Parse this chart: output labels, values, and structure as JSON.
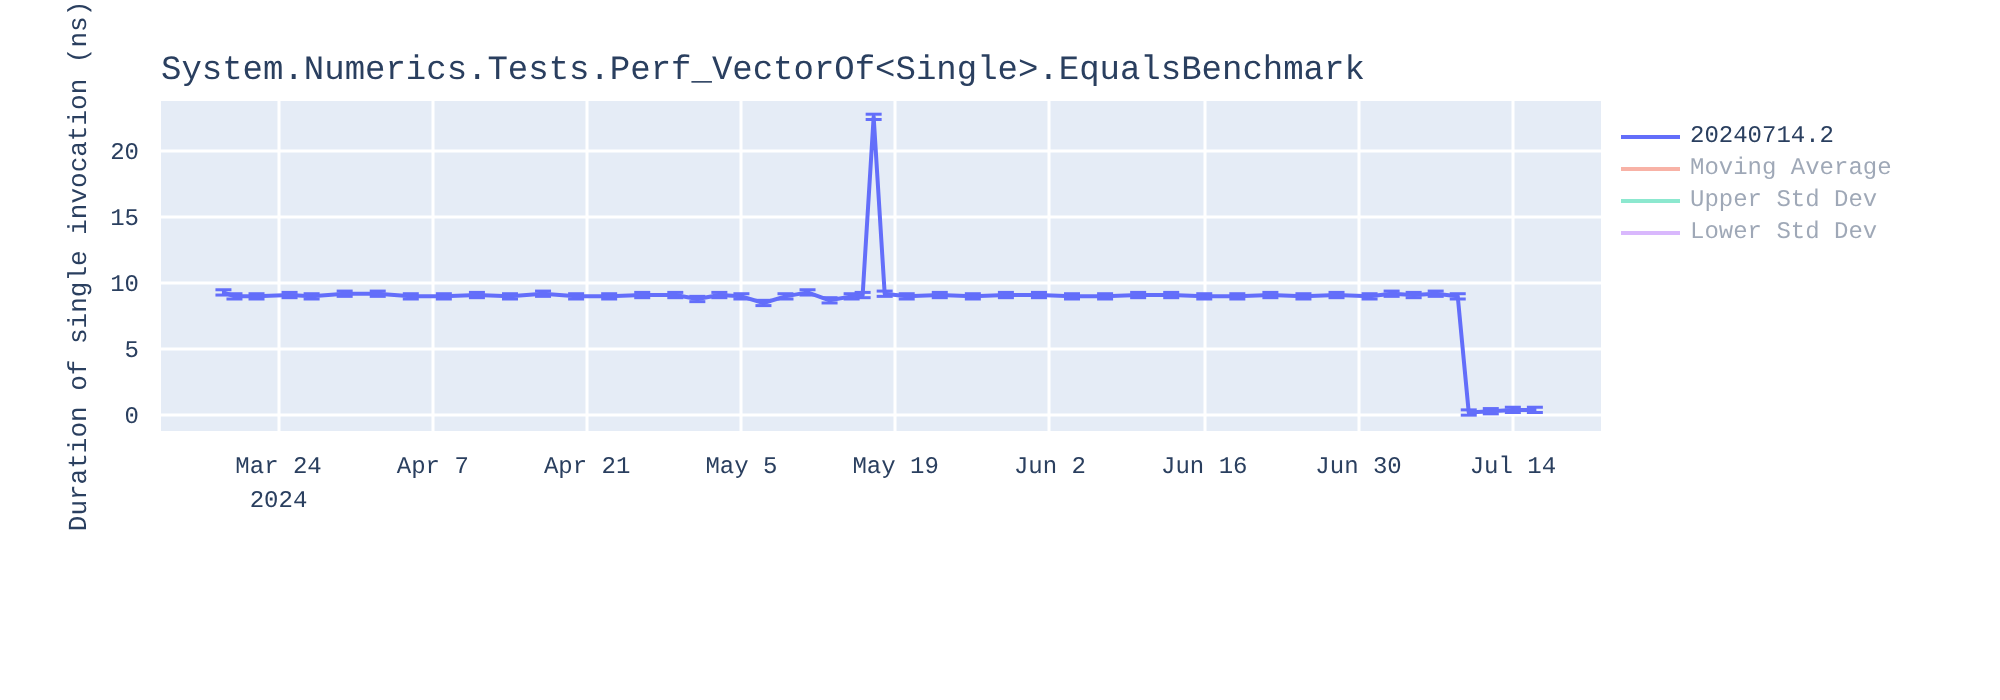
{
  "chart_data": {
    "type": "line",
    "title": "System.Numerics.Tests.Perf_VectorOf<Single>.EqualsBenchmark",
    "ylabel": "Duration of single invocation (ns)",
    "x": [
      "2024-03-19",
      "2024-03-20",
      "2024-03-22",
      "2024-03-25",
      "2024-03-27",
      "2024-03-30",
      "2024-04-02",
      "2024-04-05",
      "2024-04-08",
      "2024-04-11",
      "2024-04-14",
      "2024-04-17",
      "2024-04-20",
      "2024-04-23",
      "2024-04-26",
      "2024-04-29",
      "2024-05-01",
      "2024-05-03",
      "2024-05-05",
      "2024-05-07",
      "2024-05-09",
      "2024-05-11",
      "2024-05-13",
      "2024-05-15",
      "2024-05-16",
      "2024-05-17",
      "2024-05-18",
      "2024-05-20",
      "2024-05-23",
      "2024-05-26",
      "2024-05-29",
      "2024-06-01",
      "2024-06-04",
      "2024-06-07",
      "2024-06-10",
      "2024-06-13",
      "2024-06-16",
      "2024-06-19",
      "2024-06-22",
      "2024-06-25",
      "2024-06-28",
      "2024-07-01",
      "2024-07-03",
      "2024-07-05",
      "2024-07-07",
      "2024-07-09",
      "2024-07-10",
      "2024-07-12",
      "2024-07-14",
      "2024-07-16"
    ],
    "series": [
      {
        "name": "20240714.2",
        "color": "#636efa",
        "values": [
          9.3,
          9.0,
          9.0,
          9.1,
          9.0,
          9.2,
          9.2,
          9.0,
          9.0,
          9.1,
          9.0,
          9.2,
          9.0,
          9.0,
          9.1,
          9.1,
          8.8,
          9.1,
          9.0,
          8.5,
          9.0,
          9.3,
          8.7,
          9.0,
          9.1,
          22.6,
          9.2,
          9.0,
          9.1,
          9.0,
          9.1,
          9.1,
          9.0,
          9.0,
          9.1,
          9.1,
          9.0,
          9.0,
          9.1,
          9.0,
          9.1,
          9.0,
          9.2,
          9.1,
          9.2,
          9.0,
          0.2,
          0.3,
          0.4,
          0.4
        ],
        "errors": [
          0.2,
          0.2,
          0.2,
          0.2,
          0.2,
          0.2,
          0.2,
          0.2,
          0.2,
          0.2,
          0.2,
          0.2,
          0.2,
          0.2,
          0.2,
          0.2,
          0.2,
          0.2,
          0.2,
          0.2,
          0.2,
          0.2,
          0.2,
          0.2,
          0.2,
          0.2,
          0.2,
          0.2,
          0.2,
          0.2,
          0.2,
          0.2,
          0.2,
          0.2,
          0.2,
          0.2,
          0.2,
          0.2,
          0.2,
          0.2,
          0.2,
          0.2,
          0.2,
          0.2,
          0.2,
          0.2,
          0.2,
          0.2,
          0.2,
          0.2
        ]
      },
      {
        "name": "Moving Average",
        "color": "#ef553b",
        "values": [
          null,
          null,
          null,
          null,
          null,
          null,
          null,
          null,
          null,
          null,
          null,
          null,
          null,
          null,
          null,
          null,
          null,
          null,
          null,
          null,
          null,
          null,
          null,
          null,
          null,
          null,
          null,
          null,
          null,
          null,
          null,
          null,
          null,
          null,
          null,
          null,
          null,
          null,
          null,
          null,
          null,
          null,
          null,
          null,
          null,
          null,
          null,
          null,
          null,
          null
        ]
      },
      {
        "name": "Upper Std Dev",
        "color": "#00cc96",
        "values": [
          null,
          null,
          null,
          null,
          null,
          null,
          null,
          null,
          null,
          null,
          null,
          null,
          null,
          null,
          null,
          null,
          null,
          null,
          null,
          null,
          null,
          null,
          null,
          null,
          null,
          null,
          null,
          null,
          null,
          null,
          null,
          null,
          null,
          null,
          null,
          null,
          null,
          null,
          null,
          null,
          null,
          null,
          null,
          null,
          null,
          null,
          null,
          null,
          null,
          null
        ]
      },
      {
        "name": "Lower Std Dev",
        "color": "#ab63fa",
        "values": [
          null,
          null,
          null,
          null,
          null,
          null,
          null,
          null,
          null,
          null,
          null,
          null,
          null,
          null,
          null,
          null,
          null,
          null,
          null,
          null,
          null,
          null,
          null,
          null,
          null,
          null,
          null,
          null,
          null,
          null,
          null,
          null,
          null,
          null,
          null,
          null,
          null,
          null,
          null,
          null,
          null,
          null,
          null,
          null,
          null,
          null,
          null,
          null,
          null,
          null
        ]
      }
    ],
    "xlim": [
      "2024-03-13T08:00",
      "2024-07-22"
    ],
    "xticks": [
      {
        "value": "2024-03-24",
        "label": "Mar 24\n2024"
      },
      {
        "value": "2024-04-07",
        "label": "Apr 7"
      },
      {
        "value": "2024-04-21",
        "label": "Apr 21"
      },
      {
        "value": "2024-05-05",
        "label": "May 5"
      },
      {
        "value": "2024-05-19",
        "label": "May 19"
      },
      {
        "value": "2024-06-02",
        "label": "Jun 2"
      },
      {
        "value": "2024-06-16",
        "label": "Jun 16"
      },
      {
        "value": "2024-06-30",
        "label": "Jun 30"
      },
      {
        "value": "2024-07-14",
        "label": "Jul 14"
      }
    ],
    "ylim": [
      -1.2,
      23.8
    ],
    "yticks": [
      0,
      5,
      10,
      15,
      20
    ],
    "grid": true,
    "legend": "right",
    "line_style": "solid"
  }
}
